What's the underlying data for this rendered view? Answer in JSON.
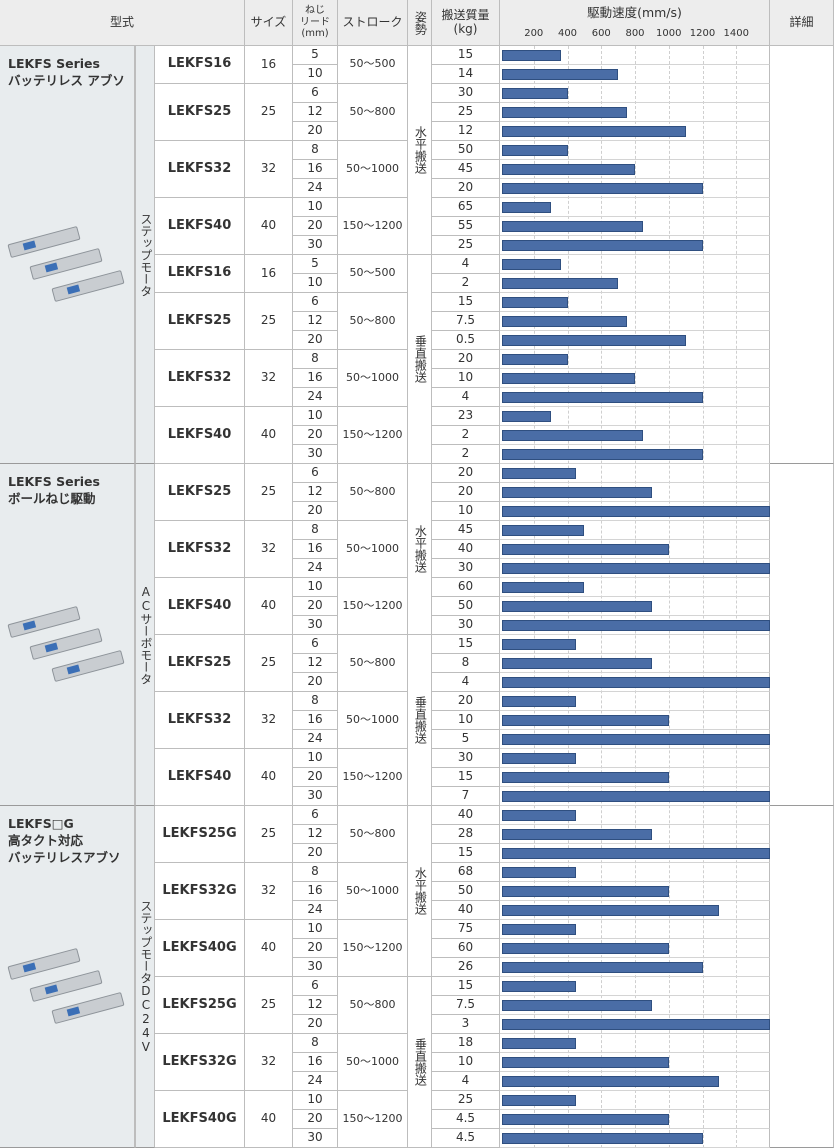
{
  "header": {
    "model": "型式",
    "size": "サイズ",
    "lead": [
      "ねじ",
      "リード",
      "(mm)"
    ],
    "stroke": "ストローク",
    "orientation": "姿勢",
    "payload": [
      "搬送質量",
      "(kg)"
    ],
    "speed": "駆動速度(mm/s)",
    "detail": "詳細"
  },
  "chart": {
    "xlim": [
      0,
      1600
    ],
    "xticks": [
      200,
      400,
      600,
      800,
      1000,
      1200,
      1400
    ],
    "color": "#4a6da6"
  },
  "groups": [
    {
      "name": [
        "LEKFS Series",
        "バッテリレス アブソ"
      ],
      "motor": "ステップモータ",
      "orientations": [
        {
          "label": "水平搬送",
          "models": [
            {
              "model": "LEKFS16",
              "size": 16,
              "stroke": "50～500",
              "rows": [
                {
                  "lead": 5,
                  "payload": 15,
                  "speed": 360
                },
                {
                  "lead": 10,
                  "payload": 14,
                  "speed": 700
                }
              ]
            },
            {
              "model": "LEKFS25",
              "size": 25,
              "stroke": "50～800",
              "rows": [
                {
                  "lead": 6,
                  "payload": 30,
                  "speed": 400
                },
                {
                  "lead": 12,
                  "payload": 25,
                  "speed": 750
                },
                {
                  "lead": 20,
                  "payload": 12,
                  "speed": 1100
                }
              ]
            },
            {
              "model": "LEKFS32",
              "size": 32,
              "stroke": "50～1000",
              "rows": [
                {
                  "lead": 8,
                  "payload": 50,
                  "speed": 400
                },
                {
                  "lead": 16,
                  "payload": 45,
                  "speed": 800
                },
                {
                  "lead": 24,
                  "payload": 20,
                  "speed": 1200
                }
              ]
            },
            {
              "model": "LEKFS40",
              "size": 40,
              "stroke": "150～1200",
              "rows": [
                {
                  "lead": 10,
                  "payload": 65,
                  "speed": 300
                },
                {
                  "lead": 20,
                  "payload": 55,
                  "speed": 850
                },
                {
                  "lead": 30,
                  "payload": 25,
                  "speed": 1200
                }
              ]
            }
          ]
        },
        {
          "label": "垂直搬送",
          "models": [
            {
              "model": "LEKFS16",
              "size": 16,
              "stroke": "50～500",
              "rows": [
                {
                  "lead": 5,
                  "payload": 4,
                  "speed": 360
                },
                {
                  "lead": 10,
                  "payload": 2,
                  "speed": 700
                }
              ]
            },
            {
              "model": "LEKFS25",
              "size": 25,
              "stroke": "50～800",
              "rows": [
                {
                  "lead": 6,
                  "payload": 15,
                  "speed": 400
                },
                {
                  "lead": 12,
                  "payload": 7.5,
                  "speed": 750
                },
                {
                  "lead": 20,
                  "payload": 0.5,
                  "speed": 1100
                }
              ]
            },
            {
              "model": "LEKFS32",
              "size": 32,
              "stroke": "50～1000",
              "rows": [
                {
                  "lead": 8,
                  "payload": 20,
                  "speed": 400
                },
                {
                  "lead": 16,
                  "payload": 10,
                  "speed": 800
                },
                {
                  "lead": 24,
                  "payload": 4,
                  "speed": 1200
                }
              ]
            },
            {
              "model": "LEKFS40",
              "size": 40,
              "stroke": "150～1200",
              "rows": [
                {
                  "lead": 10,
                  "payload": 23,
                  "speed": 300
                },
                {
                  "lead": 20,
                  "payload": 2,
                  "speed": 850
                },
                {
                  "lead": 30,
                  "payload": 2,
                  "speed": 1200
                }
              ]
            }
          ]
        }
      ]
    },
    {
      "name": [
        "LEKFS Series",
        "ボールねじ駆動"
      ],
      "motor": "ACサーボモータ",
      "orientations": [
        {
          "label": "水平搬送",
          "models": [
            {
              "model": "LEKFS25",
              "size": 25,
              "stroke": "50～800",
              "rows": [
                {
                  "lead": 6,
                  "payload": 20,
                  "speed": 450
                },
                {
                  "lead": 12,
                  "payload": 20,
                  "speed": 900
                },
                {
                  "lead": 20,
                  "payload": 10,
                  "speed": 1600
                }
              ]
            },
            {
              "model": "LEKFS32",
              "size": 32,
              "stroke": "50～1000",
              "rows": [
                {
                  "lead": 8,
                  "payload": 45,
                  "speed": 500
                },
                {
                  "lead": 16,
                  "payload": 40,
                  "speed": 1000
                },
                {
                  "lead": 24,
                  "payload": 30,
                  "speed": 1600
                }
              ]
            },
            {
              "model": "LEKFS40",
              "size": 40,
              "stroke": "150～1200",
              "rows": [
                {
                  "lead": 10,
                  "payload": 60,
                  "speed": 500
                },
                {
                  "lead": 20,
                  "payload": 50,
                  "speed": 900
                },
                {
                  "lead": 30,
                  "payload": 30,
                  "speed": 1600
                }
              ]
            }
          ]
        },
        {
          "label": "垂直搬送",
          "models": [
            {
              "model": "LEKFS25",
              "size": 25,
              "stroke": "50～800",
              "rows": [
                {
                  "lead": 6,
                  "payload": 15,
                  "speed": 450
                },
                {
                  "lead": 12,
                  "payload": 8,
                  "speed": 900
                },
                {
                  "lead": 20,
                  "payload": 4,
                  "speed": 1600
                }
              ]
            },
            {
              "model": "LEKFS32",
              "size": 32,
              "stroke": "50～1000",
              "rows": [
                {
                  "lead": 8,
                  "payload": 20,
                  "speed": 450
                },
                {
                  "lead": 16,
                  "payload": 10,
                  "speed": 1000
                },
                {
                  "lead": 24,
                  "payload": 5,
                  "speed": 1600
                }
              ]
            },
            {
              "model": "LEKFS40",
              "size": 40,
              "stroke": "150～1200",
              "rows": [
                {
                  "lead": 10,
                  "payload": 30,
                  "speed": 450
                },
                {
                  "lead": 20,
                  "payload": 15,
                  "speed": 1000
                },
                {
                  "lead": 30,
                  "payload": 7,
                  "speed": 1600
                }
              ]
            }
          ]
        }
      ]
    },
    {
      "name": [
        "LEKFS□G",
        "高タクト対応",
        "バッテリレスアブソ"
      ],
      "motor": "ステップモータDC24V",
      "orientations": [
        {
          "label": "水平搬送",
          "models": [
            {
              "model": "LEKFS25G",
              "size": 25,
              "stroke": "50～800",
              "rows": [
                {
                  "lead": 6,
                  "payload": 40,
                  "speed": 450
                },
                {
                  "lead": 12,
                  "payload": 28,
                  "speed": 900
                },
                {
                  "lead": 20,
                  "payload": 15,
                  "speed": 1600
                }
              ]
            },
            {
              "model": "LEKFS32G",
              "size": 32,
              "stroke": "50～1000",
              "rows": [
                {
                  "lead": 8,
                  "payload": 68,
                  "speed": 450
                },
                {
                  "lead": 16,
                  "payload": 50,
                  "speed": 1000
                },
                {
                  "lead": 24,
                  "payload": 40,
                  "speed": 1300
                }
              ]
            },
            {
              "model": "LEKFS40G",
              "size": 40,
              "stroke": "150～1200",
              "rows": [
                {
                  "lead": 10,
                  "payload": 75,
                  "speed": 450
                },
                {
                  "lead": 20,
                  "payload": 60,
                  "speed": 1000
                },
                {
                  "lead": 30,
                  "payload": 26,
                  "speed": 1200
                }
              ]
            }
          ]
        },
        {
          "label": "垂直搬送",
          "models": [
            {
              "model": "LEKFS25G",
              "size": 25,
              "stroke": "50～800",
              "rows": [
                {
                  "lead": 6,
                  "payload": 15,
                  "speed": 450
                },
                {
                  "lead": 12,
                  "payload": 7.5,
                  "speed": 900
                },
                {
                  "lead": 20,
                  "payload": 3,
                  "speed": 1600
                }
              ]
            },
            {
              "model": "LEKFS32G",
              "size": 32,
              "stroke": "50～1000",
              "rows": [
                {
                  "lead": 8,
                  "payload": 18,
                  "speed": 450
                },
                {
                  "lead": 16,
                  "payload": 10,
                  "speed": 1000
                },
                {
                  "lead": 24,
                  "payload": 4,
                  "speed": 1300
                }
              ]
            },
            {
              "model": "LEKFS40G",
              "size": 40,
              "stroke": "150～1200",
              "rows": [
                {
                  "lead": 10,
                  "payload": 25,
                  "speed": 450
                },
                {
                  "lead": 20,
                  "payload": 4.5,
                  "speed": 1000
                },
                {
                  "lead": 30,
                  "payload": 4.5,
                  "speed": 1200
                }
              ]
            }
          ]
        }
      ]
    }
  ]
}
